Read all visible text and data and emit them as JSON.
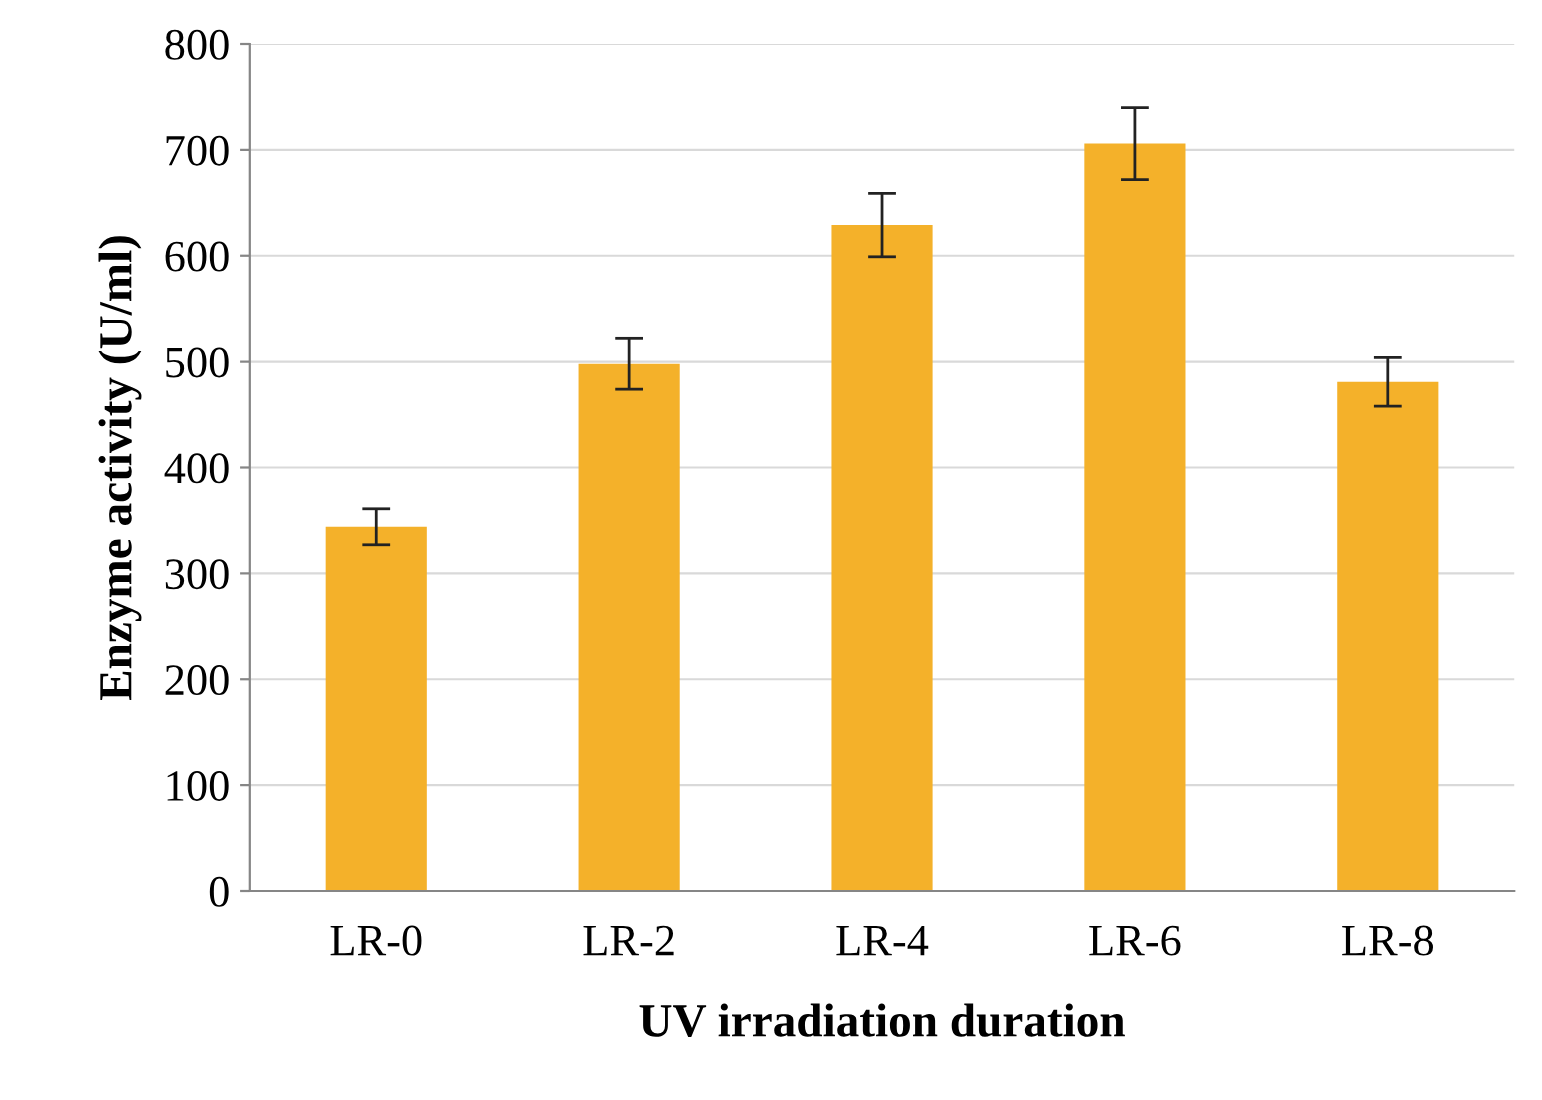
{
  "chart_data": {
    "type": "bar",
    "categories": [
      "LR-0",
      "LR-2",
      "LR-4",
      "LR-6",
      "LR-8"
    ],
    "values": [
      344,
      498,
      629,
      706,
      481
    ],
    "errors": [
      17,
      24,
      30,
      34,
      23
    ],
    "color": "#f4b12a",
    "xlabel": "UV irradiation duration",
    "ylabel": "Enzyme activity (U/ml)",
    "ylim": [
      0,
      800
    ],
    "yticks": [
      0,
      100,
      200,
      300,
      400,
      500,
      600,
      700,
      800
    ],
    "grid": "y",
    "legend": false
  }
}
